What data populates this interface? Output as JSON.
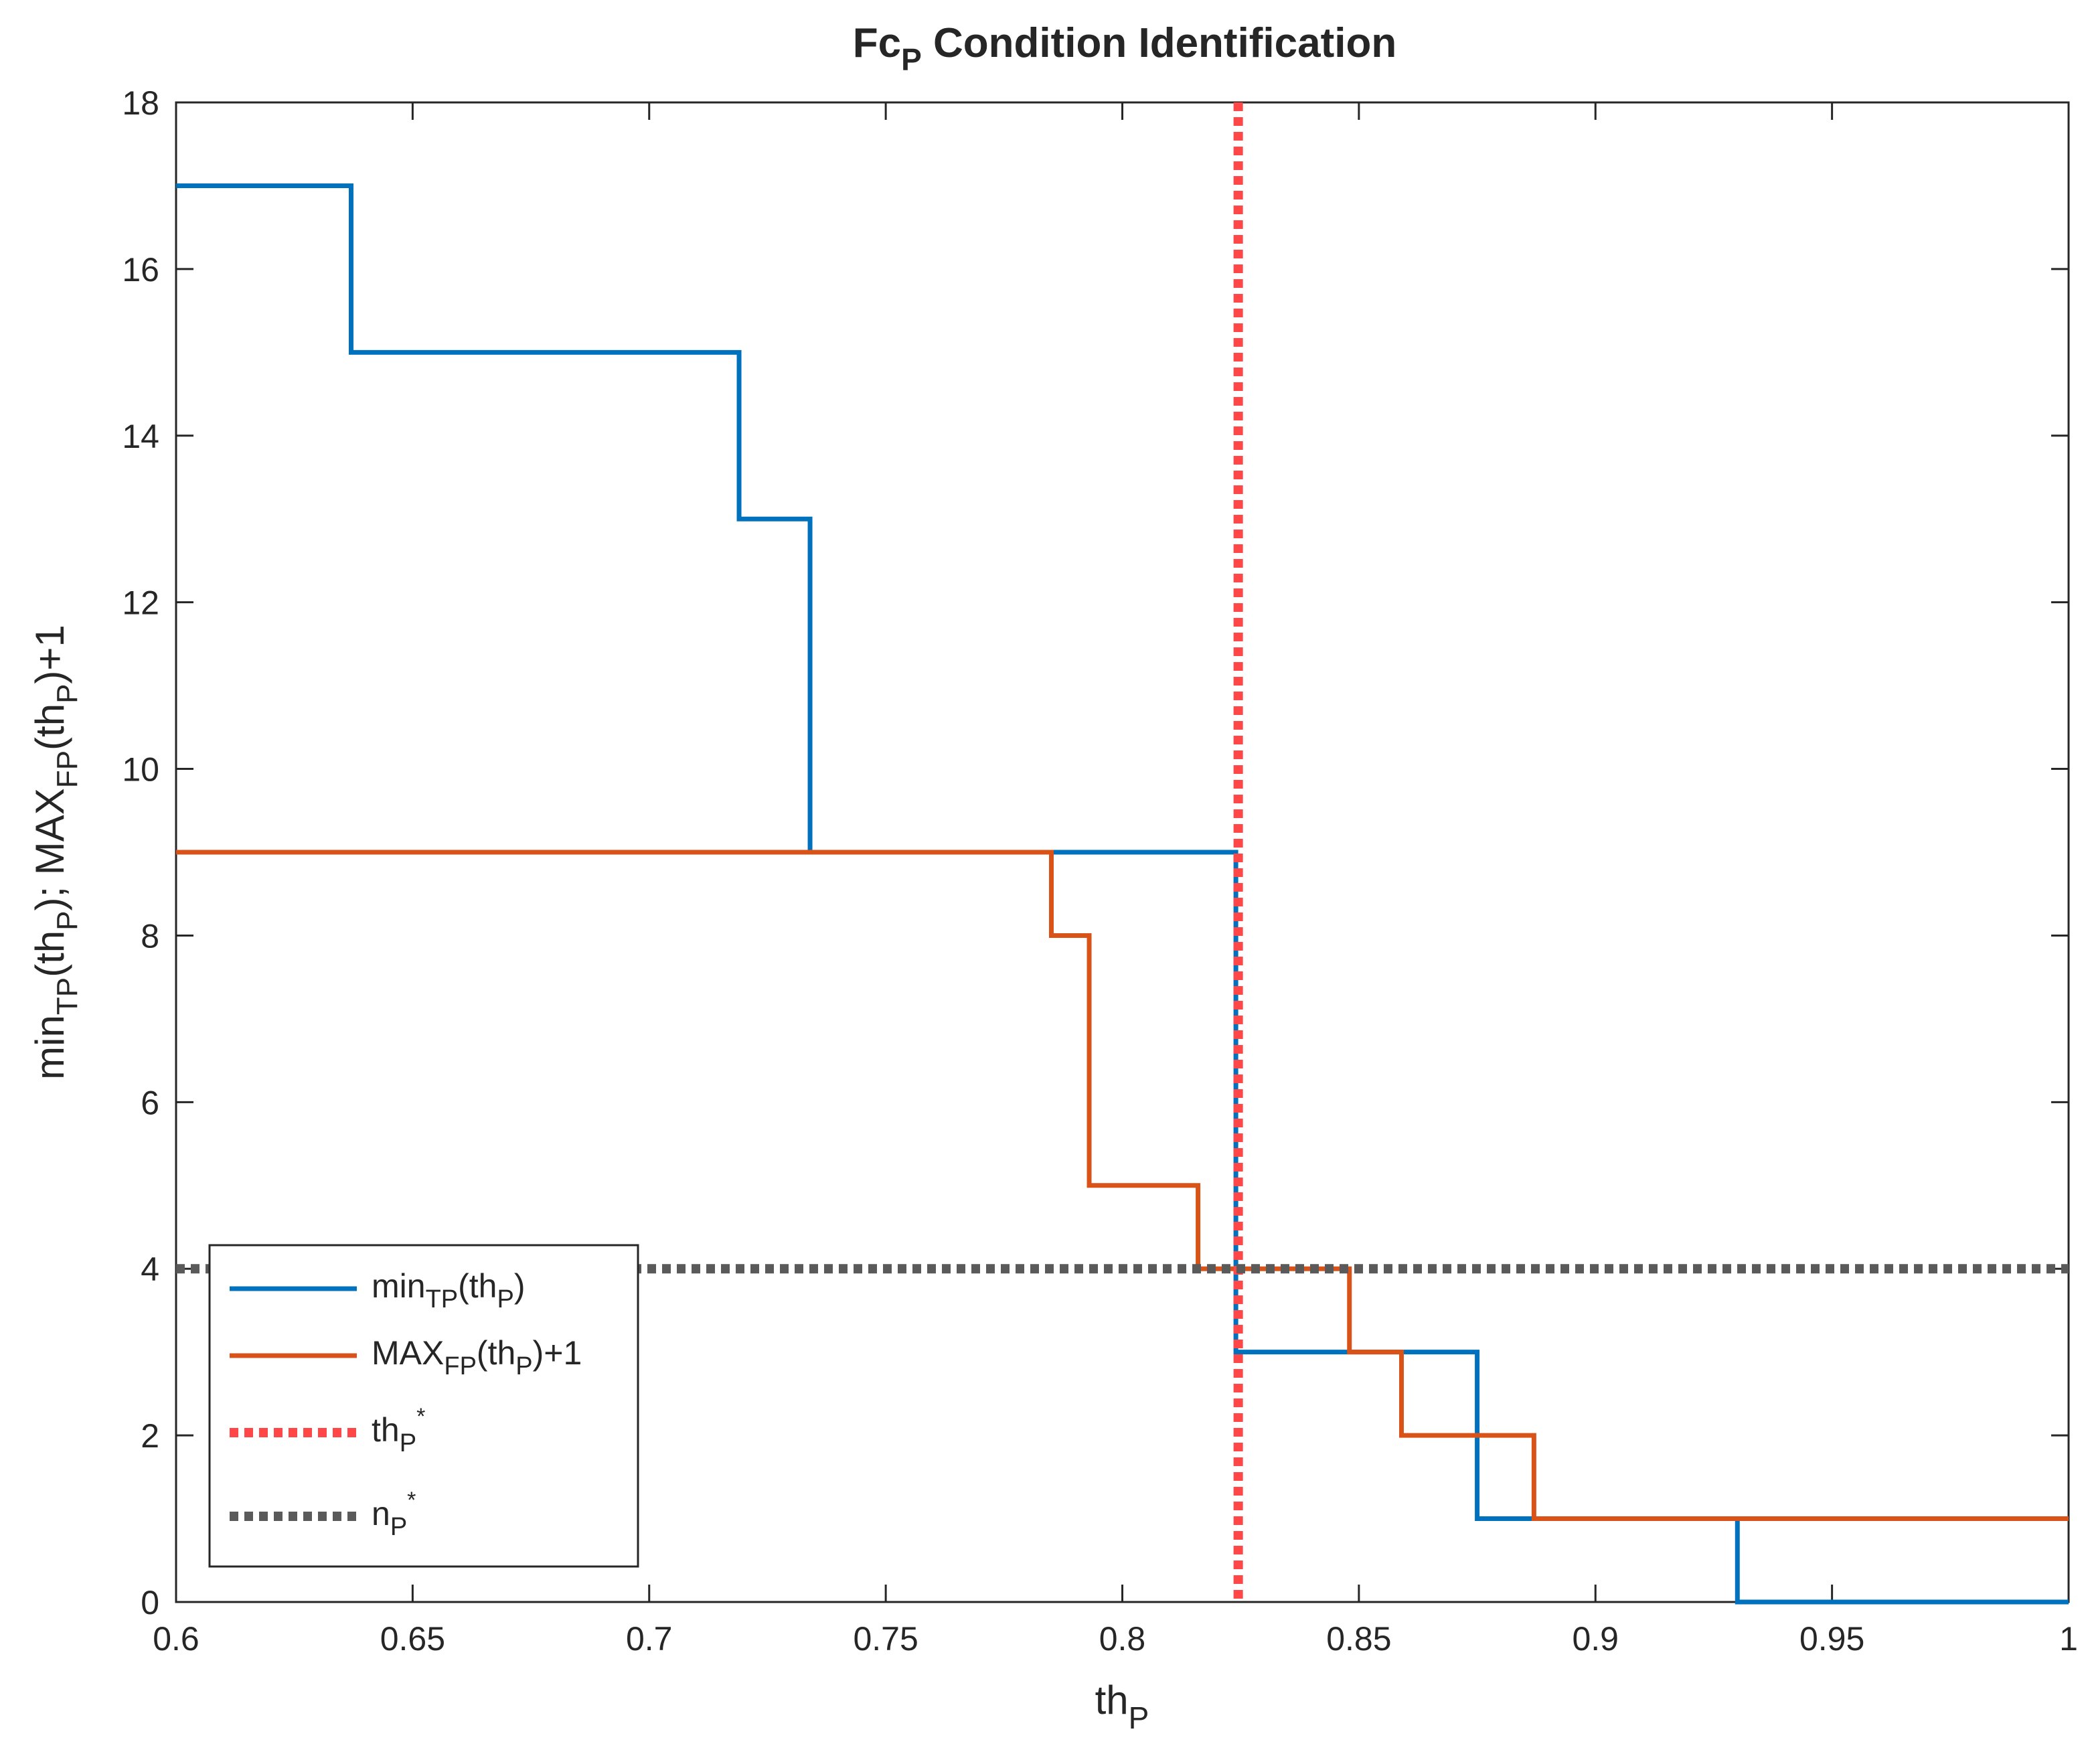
{
  "chart_data": {
    "type": "line",
    "title": {
      "main": "Fc",
      "sub": "P",
      "rest": " Condition Identification"
    },
    "xlabel": {
      "main": "th",
      "sub": "P"
    },
    "ylabel": {
      "p1": "min",
      "s1": "TP",
      "p2": "(th",
      "s2": "P",
      "p3": "); MAX",
      "s3": "FP",
      "p4": "(th",
      "s4": "P",
      "p5": ")+1"
    },
    "xlim": [
      0.6,
      1.0
    ],
    "ylim": [
      0,
      18
    ],
    "x_ticks": [
      0.6,
      0.65,
      0.7,
      0.75,
      0.8,
      0.85,
      0.9,
      0.95,
      1.0
    ],
    "x_tick_labels": [
      "0.6",
      "0.65",
      "0.7",
      "0.75",
      "0.8",
      "0.85",
      "0.9",
      "0.95",
      "1"
    ],
    "y_ticks": [
      0,
      2,
      4,
      6,
      8,
      10,
      12,
      14,
      16,
      18
    ],
    "y_tick_labels": [
      "0",
      "2",
      "4",
      "6",
      "8",
      "10",
      "12",
      "14",
      "16",
      "18"
    ],
    "series": [
      {
        "name": "min_TP(th_P)",
        "legend": {
          "p1": "min",
          "s1": "TP",
          "p2": "(th",
          "s2": "P",
          "p3": ")"
        },
        "style": "stairs",
        "color": "#0072BD",
        "x": [
          0.6,
          0.637,
          0.719,
          0.734,
          0.824,
          0.875,
          0.93,
          1.0
        ],
        "y": [
          17,
          15,
          13,
          9,
          3,
          1,
          0,
          0
        ]
      },
      {
        "name": "MAX_FP(th_P)+1",
        "legend": {
          "p1": "MAX",
          "s1": "FP",
          "p2": "(th",
          "s2": "P",
          "p3": ")+1"
        },
        "style": "stairs",
        "color": "#D95319",
        "x": [
          0.6,
          0.785,
          0.793,
          0.816,
          0.848,
          0.859,
          0.887,
          1.0
        ],
        "y": [
          9,
          8,
          5,
          4,
          3,
          2,
          1,
          1
        ]
      }
    ],
    "reference_lines": [
      {
        "name": "th_P*",
        "orientation": "vertical",
        "value": 0.8245,
        "color": "#FF4747",
        "style": "dotted",
        "legend": {
          "p1": "th",
          "s1": "P",
          "sup": "*"
        }
      },
      {
        "name": "n_P*",
        "orientation": "horizontal",
        "value": 4,
        "color": "#5A5A5A",
        "style": "dotted",
        "legend": {
          "p1": "n",
          "s1": "P",
          "sup": "*"
        }
      }
    ],
    "legend_position": "bottom-left",
    "grid": false
  }
}
